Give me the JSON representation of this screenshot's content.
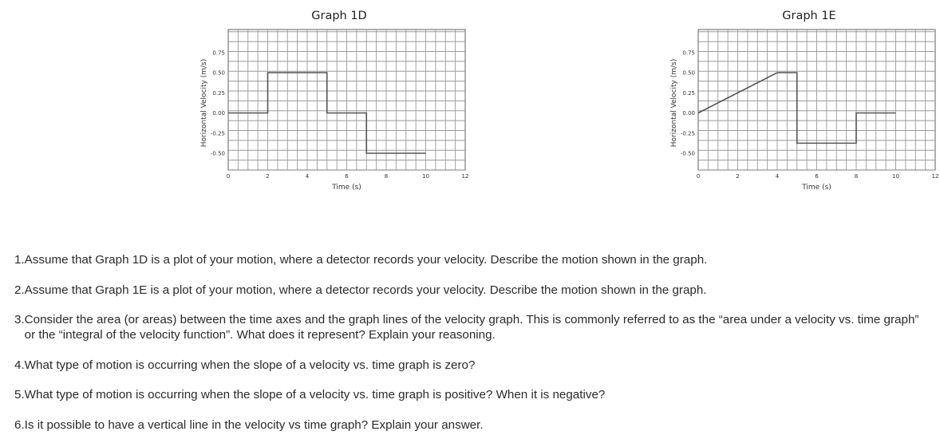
{
  "chart_data": [
    {
      "type": "line",
      "title": "Graph 1D",
      "xlabel": "Time (s)",
      "ylabel": "Horizontal Velocity (m/s)",
      "xlim": [
        0,
        12
      ],
      "ylim": [
        -0.75,
        1.0
      ],
      "x_ticks": [
        "0",
        "2",
        "4",
        "6",
        "8",
        "10",
        "12"
      ],
      "y_ticks": [
        "0.75",
        "0.50",
        "0.25",
        "0.00",
        "-0.25",
        "-0.50"
      ],
      "grid": true,
      "series": [
        {
          "points": [
            [
              0,
              0
            ],
            [
              2,
              0
            ],
            [
              2,
              0.5
            ],
            [
              5,
              0.5
            ],
            [
              5,
              0
            ],
            [
              7,
              0
            ],
            [
              7,
              -0.5
            ],
            [
              10,
              -0.5
            ]
          ]
        }
      ]
    },
    {
      "type": "line",
      "title": "Graph 1E",
      "xlabel": "Time (s)",
      "ylabel": "Horizontal Velocity (m/s)",
      "xlim": [
        0,
        12
      ],
      "ylim": [
        -0.75,
        1.0
      ],
      "x_ticks": [
        "0",
        "2",
        "4",
        "6",
        "8",
        "10",
        "12"
      ],
      "y_ticks": [
        "0.75",
        "0.50",
        "0.25",
        "0.00",
        "-0.25",
        "-0.50"
      ],
      "grid": true,
      "series": [
        {
          "points": [
            [
              0,
              0
            ],
            [
              4,
              0.5
            ],
            [
              5,
              0.5
            ],
            [
              5,
              -0.375
            ],
            [
              8,
              -0.375
            ],
            [
              8,
              0
            ],
            [
              10,
              0
            ]
          ]
        }
      ]
    }
  ],
  "questions": [
    {
      "num": "1.",
      "text": "Assume that Graph 1D is a plot of your motion, where a detector records your velocity. Describe the motion shown in the graph."
    },
    {
      "num": "2.",
      "text": "Assume that Graph 1E is a plot of your motion, where a detector records your velocity. Describe the motion shown in the graph."
    },
    {
      "num": "3.",
      "text": "Consider the area (or areas) between the time axes and the graph lines of the velocity graph. This is commonly referred to as the “area under a velocity vs. time graph” or the “integral of the velocity function”. What does it represent? Explain your reasoning."
    },
    {
      "num": "4.",
      "text": "What type of motion is occurring when the slope of a velocity vs. time graph is zero?"
    },
    {
      "num": "5.",
      "text": "What type of motion is occurring when the slope of a velocity vs. time graph is positive? When it is negative?"
    },
    {
      "num": "6.",
      "text": "Is it possible to have a vertical line in the velocity vs time graph? Explain your answer."
    }
  ]
}
